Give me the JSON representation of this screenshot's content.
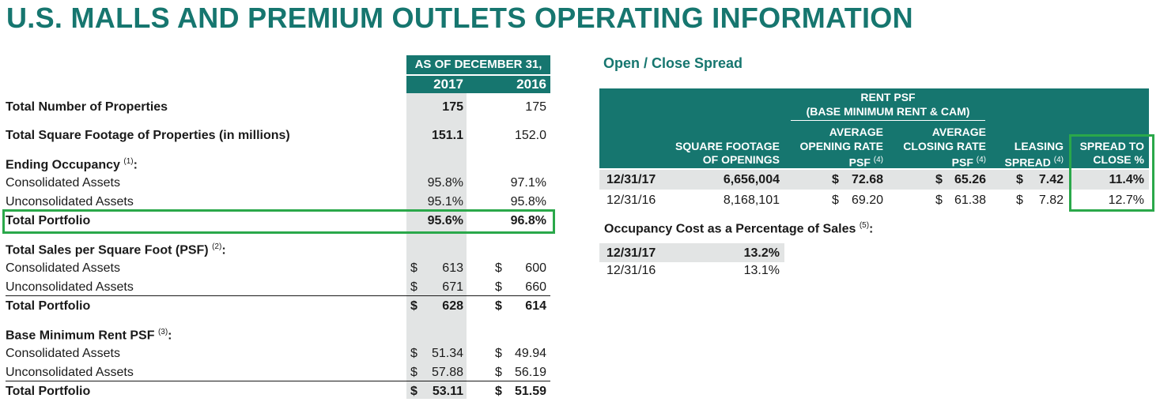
{
  "title": "U.S. MALLS AND PREMIUM OUTLETS OPERATING INFORMATION",
  "left_table": {
    "header_date": "AS OF DECEMBER 31,",
    "years": [
      "2017",
      "2016"
    ],
    "total_properties": {
      "label": "Total Number of Properties",
      "v2017": "175",
      "v2016": "175"
    },
    "total_sqft": {
      "label": "Total Square Footage of Properties (in millions)",
      "v2017": "151.1",
      "v2016": "152.0"
    },
    "occupancy": {
      "heading": "Ending Occupancy",
      "note": "(1)",
      "colon": ":",
      "rows": [
        {
          "label": "Consolidated Assets",
          "v2017": "95.8%",
          "v2016": "97.1%"
        },
        {
          "label": "Unconsolidated Assets",
          "v2017": "95.1%",
          "v2016": "95.8%"
        },
        {
          "label": "Total Portfolio",
          "v2017": "95.6%",
          "v2016": "96.8%"
        }
      ]
    },
    "sales": {
      "heading": "Total Sales per Square Foot (PSF)",
      "note": "(2)",
      "colon": ":",
      "currency": "$",
      "rows": [
        {
          "label": "Consolidated Assets",
          "v2017": "613",
          "v2016": "600"
        },
        {
          "label": "Unconsolidated Assets",
          "v2017": "671",
          "v2016": "660"
        },
        {
          "label": "Total Portfolio",
          "v2017": "628",
          "v2016": "614"
        }
      ]
    },
    "rent": {
      "heading": "Base Minimum Rent PSF",
      "note": "(3)",
      "colon": ":",
      "currency": "$",
      "rows": [
        {
          "label": "Consolidated Assets",
          "v2017": "51.34",
          "v2016": "49.94"
        },
        {
          "label": "Unconsolidated Assets",
          "v2017": "57.88",
          "v2016": "56.19"
        },
        {
          "label": "Total Portfolio",
          "v2017": "53.11",
          "v2016": "51.59"
        }
      ]
    }
  },
  "spread": {
    "heading": "Open / Close Spread",
    "rent_psf_line1": "RENT PSF",
    "rent_psf_line2": "(BASE MINIMUM RENT & CAM)",
    "cols": {
      "sqft_l1": "SQUARE FOOTAGE",
      "sqft_l2": "OF OPENINGS",
      "open_l1": "AVERAGE",
      "open_l2": "OPENING RATE",
      "open_l3": "PSF",
      "close_l1": "AVERAGE",
      "close_l2": "CLOSING RATE",
      "close_l3": "PSF",
      "leasing_l1": "LEASING",
      "leasing_l2": "SPREAD",
      "spread_l1": "SPREAD TO",
      "spread_l2": "CLOSE %",
      "note4": "(4)"
    },
    "currency": "$",
    "rows": [
      {
        "date": "12/31/17",
        "sqft": "6,656,004",
        "open": "72.68",
        "close": "65.26",
        "leasing": "7.42",
        "spread": "11.4%"
      },
      {
        "date": "12/31/16",
        "sqft": "8,168,101",
        "open": "69.20",
        "close": "61.38",
        "leasing": "7.82",
        "spread": "12.7%"
      }
    ]
  },
  "occupancy_cost": {
    "heading": "Occupancy Cost as a Percentage of Sales",
    "note": "(5)",
    "colon": ":",
    "rows": [
      {
        "date": "12/31/17",
        "value": "13.2%"
      },
      {
        "date": "12/31/16",
        "value": "13.1%"
      }
    ]
  },
  "colors": {
    "teal": "#16766f",
    "grey": "#e2e4e4",
    "highlight_green": "#2aa84a"
  }
}
